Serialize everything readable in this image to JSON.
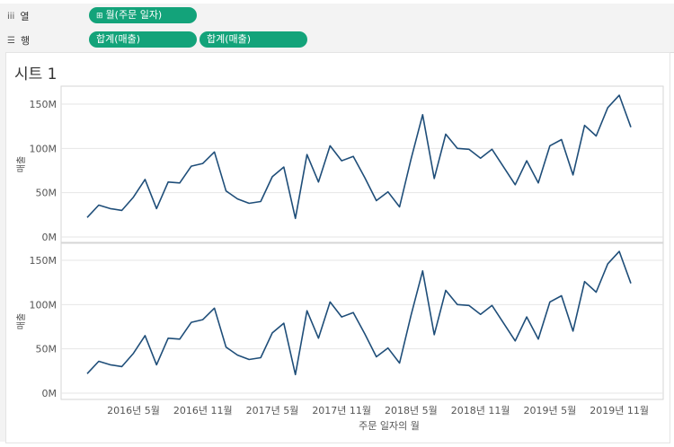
{
  "shelves": {
    "columns": {
      "label": "열",
      "pill": "월(주문 일자)",
      "pill_prefix": "⊞"
    },
    "rows": {
      "label": "행",
      "pills": [
        "합계(매출)",
        "합계(매출)"
      ]
    }
  },
  "sheet_title": "시트 1",
  "chart_data": [
    {
      "type": "line",
      "ylabel": "매출",
      "yticks": [
        "150M",
        "100M",
        "50M",
        "0M"
      ],
      "ylim": [
        0,
        165
      ],
      "x": [
        "2016-01",
        "2016-02",
        "2016-03",
        "2016-04",
        "2016-05",
        "2016-06",
        "2016-07",
        "2016-08",
        "2016-09",
        "2016-10",
        "2016-11",
        "2016-12",
        "2017-01",
        "2017-02",
        "2017-03",
        "2017-04",
        "2017-05",
        "2017-06",
        "2017-07",
        "2017-08",
        "2017-09",
        "2017-10",
        "2017-11",
        "2017-12",
        "2018-01",
        "2018-02",
        "2018-03",
        "2018-04",
        "2018-05",
        "2018-06",
        "2018-07",
        "2018-08",
        "2018-09",
        "2018-10",
        "2018-11",
        "2018-12",
        "2019-01",
        "2019-02",
        "2019-03",
        "2019-04",
        "2019-05",
        "2019-06",
        "2019-07",
        "2019-08",
        "2019-09",
        "2019-10",
        "2019-11",
        "2019-12"
      ],
      "series": [
        {
          "values": [
            22,
            36,
            32,
            30,
            45,
            65,
            32,
            62,
            61,
            80,
            83,
            96,
            52,
            43,
            38,
            40,
            68,
            79,
            21,
            93,
            62,
            103,
            86,
            91,
            67,
            41,
            51,
            34,
            88,
            138,
            66,
            116,
            100,
            99,
            89,
            99,
            79,
            59,
            86,
            61,
            103,
            110,
            70,
            126,
            114,
            146,
            160,
            124
          ]
        }
      ],
      "grid": true
    },
    {
      "type": "line",
      "ylabel": "매출",
      "yticks": [
        "150M",
        "100M",
        "50M",
        "0M"
      ],
      "ylim": [
        0,
        165
      ],
      "xlabel": "주문 일자의 월",
      "xticks": [
        "2016년 5월",
        "2016년 11월",
        "2017년 5월",
        "2017년 11월",
        "2018년 5월",
        "2018년 11월",
        "2019년 5월",
        "2019년 11월"
      ],
      "x": [
        "2016-01",
        "2016-02",
        "2016-03",
        "2016-04",
        "2016-05",
        "2016-06",
        "2016-07",
        "2016-08",
        "2016-09",
        "2016-10",
        "2016-11",
        "2016-12",
        "2017-01",
        "2017-02",
        "2017-03",
        "2017-04",
        "2017-05",
        "2017-06",
        "2017-07",
        "2017-08",
        "2017-09",
        "2017-10",
        "2017-11",
        "2017-12",
        "2018-01",
        "2018-02",
        "2018-03",
        "2018-04",
        "2018-05",
        "2018-06",
        "2018-07",
        "2018-08",
        "2018-09",
        "2018-10",
        "2018-11",
        "2018-12",
        "2019-01",
        "2019-02",
        "2019-03",
        "2019-04",
        "2019-05",
        "2019-06",
        "2019-07",
        "2019-08",
        "2019-09",
        "2019-10",
        "2019-11",
        "2019-12"
      ],
      "series": [
        {
          "values": [
            22,
            36,
            32,
            30,
            45,
            65,
            32,
            62,
            61,
            80,
            83,
            96,
            52,
            43,
            38,
            40,
            68,
            79,
            21,
            93,
            62,
            103,
            86,
            91,
            67,
            41,
            51,
            34,
            88,
            138,
            66,
            116,
            100,
            99,
            89,
            99,
            79,
            59,
            86,
            61,
            103,
            110,
            70,
            126,
            114,
            146,
            160,
            124
          ]
        }
      ],
      "grid": true
    }
  ],
  "colors": {
    "line": "#1f4e79",
    "pill": "#13a37a",
    "grid": "#e6e6e6"
  }
}
